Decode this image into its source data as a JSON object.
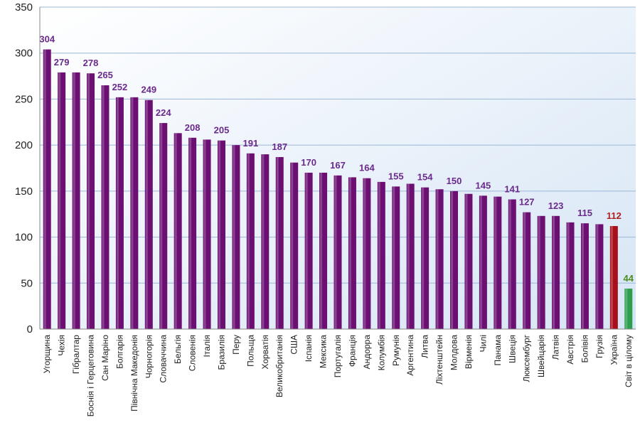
{
  "chart_data": {
    "type": "bar",
    "title": "",
    "xlabel": "",
    "ylabel": "",
    "ylim": [
      0,
      350
    ],
    "yticks": [
      0,
      50,
      100,
      150,
      200,
      250,
      300,
      350
    ],
    "grid": true,
    "categories": [
      "Угорщина",
      "Чехія",
      "Гібралтар",
      "Боснія і Герцеговина",
      "Сан Маріно",
      "Болгарія",
      "Північна Македонія",
      "Чорногорія",
      "Словаччина",
      "Бельгія",
      "Словенія",
      "Італія",
      "Бразилія",
      "Перу",
      "Польща",
      "Хорватія",
      "Великобританія",
      "США",
      "Іспанія",
      "Мексика",
      "Португалія",
      "Франція",
      "Андорра",
      "Колумбія",
      "Румунія",
      "Аргентина",
      "Литва",
      "Ліхтенштейн",
      "Молдова",
      "Вірменія",
      "Чилі",
      "Панама",
      "Швеція",
      "Люксембург",
      "Швейцарія",
      "Латвія",
      "Австрія",
      "Болівія",
      "Грузія",
      "Україна",
      "Світ в цілому"
    ],
    "values": [
      304,
      279,
      279,
      278,
      265,
      252,
      252,
      249,
      224,
      213,
      208,
      206,
      205,
      200,
      191,
      190,
      187,
      181,
      170,
      170,
      167,
      165,
      164,
      160,
      155,
      158,
      154,
      152,
      150,
      147,
      145,
      144,
      141,
      127,
      123,
      123,
      116,
      115,
      114,
      112,
      44
    ],
    "data_labels": [
      "304",
      "279",
      "",
      "278",
      "265",
      "252",
      "",
      "249",
      "224",
      "",
      "208",
      "",
      "205",
      "",
      "191",
      "",
      "187",
      "",
      "170",
      "",
      "167",
      "",
      "164",
      "",
      "155",
      "",
      "154",
      "",
      "150",
      "",
      "145",
      "",
      "141",
      "127",
      "",
      "123",
      "",
      "115",
      "",
      "112",
      "44"
    ],
    "colors": {
      "default": "#6B0F73",
      "Україна": "#A80F1A",
      "Світ в цілому": "#2E9E4F",
      "label_default": "#6A2A8C",
      "label_Україна": "#B01E1E",
      "label_Світ в цілому": "#4E8C1E",
      "plot_bg": "#E4EEF9",
      "grid": "#9CB8D6"
    }
  }
}
